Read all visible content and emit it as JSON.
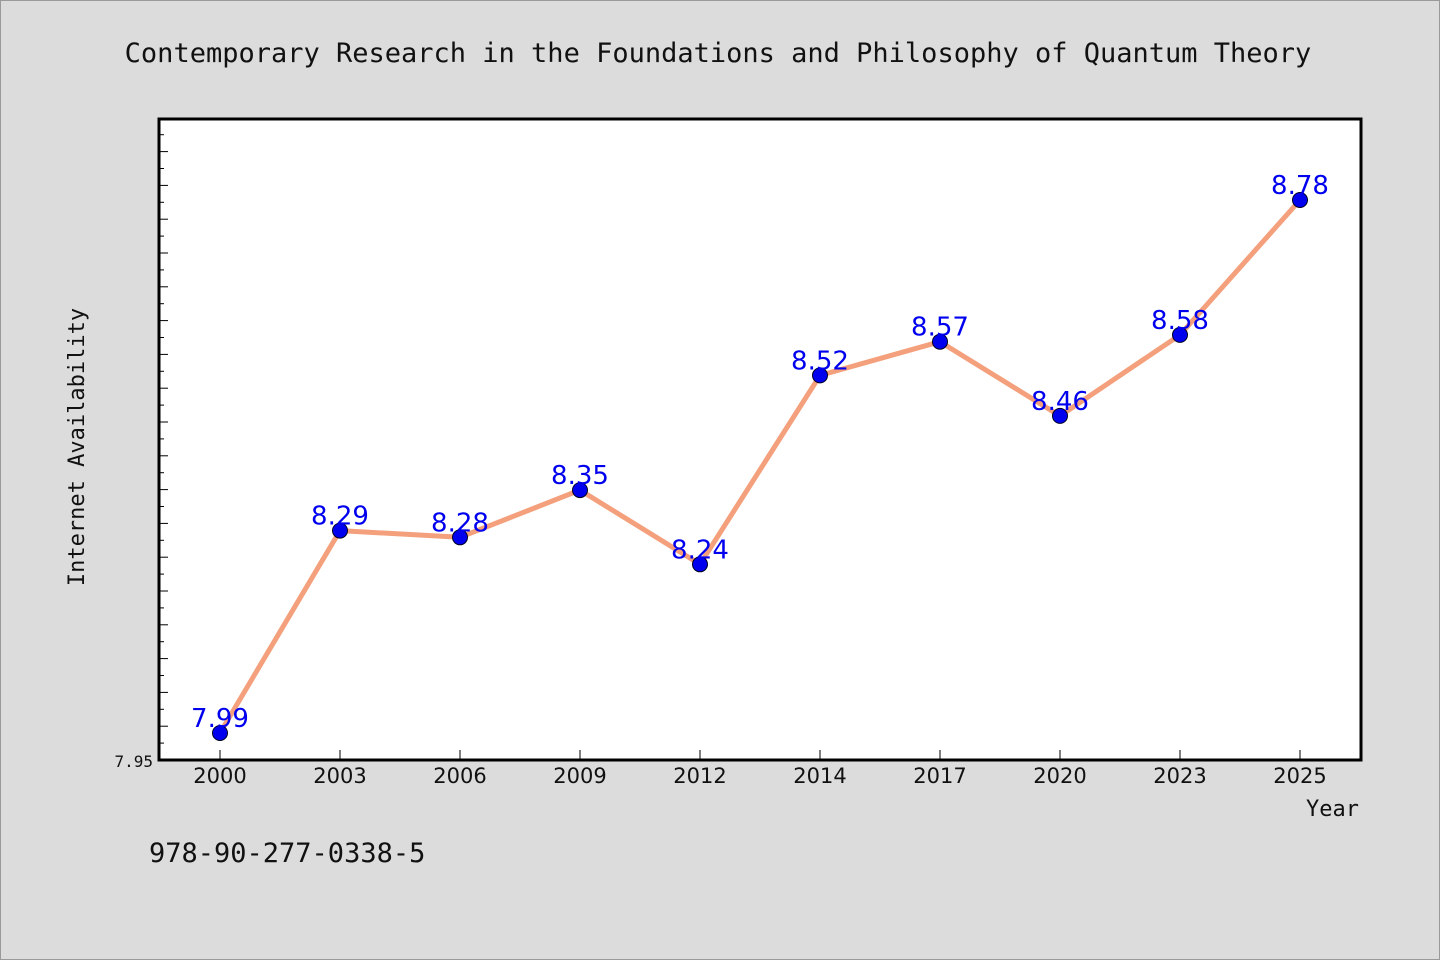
{
  "chart_data": {
    "type": "line",
    "title": "Contemporary Research in the Foundations and Philosophy of Quantum Theory",
    "xlabel": "Year",
    "ylabel": "Internet Availability",
    "categories": [
      "2000",
      "2003",
      "2006",
      "2009",
      "2012",
      "2014",
      "2017",
      "2020",
      "2023",
      "2025"
    ],
    "series": [
      {
        "values": [
          7.99,
          8.29,
          8.28,
          8.35,
          8.24,
          8.52,
          8.57,
          8.46,
          8.58,
          8.78
        ]
      }
    ],
    "data_labels": [
      "7.99",
      "8.29",
      "8.28",
      "8.35",
      "8.24",
      "8.52",
      "8.57",
      "8.46",
      "8.58",
      "8.78"
    ],
    "ylim": [
      7.95,
      8.9
    ],
    "y_tick_labels": [
      "7.95"
    ],
    "grid": false,
    "colors": {
      "line": "#f4a07c",
      "marker": "#0000ee",
      "data_label": "#0000ee",
      "plot_background": "#ffffff",
      "figure_background": "#dcdcdc"
    }
  },
  "footnote": "978-90-277-0338-5"
}
